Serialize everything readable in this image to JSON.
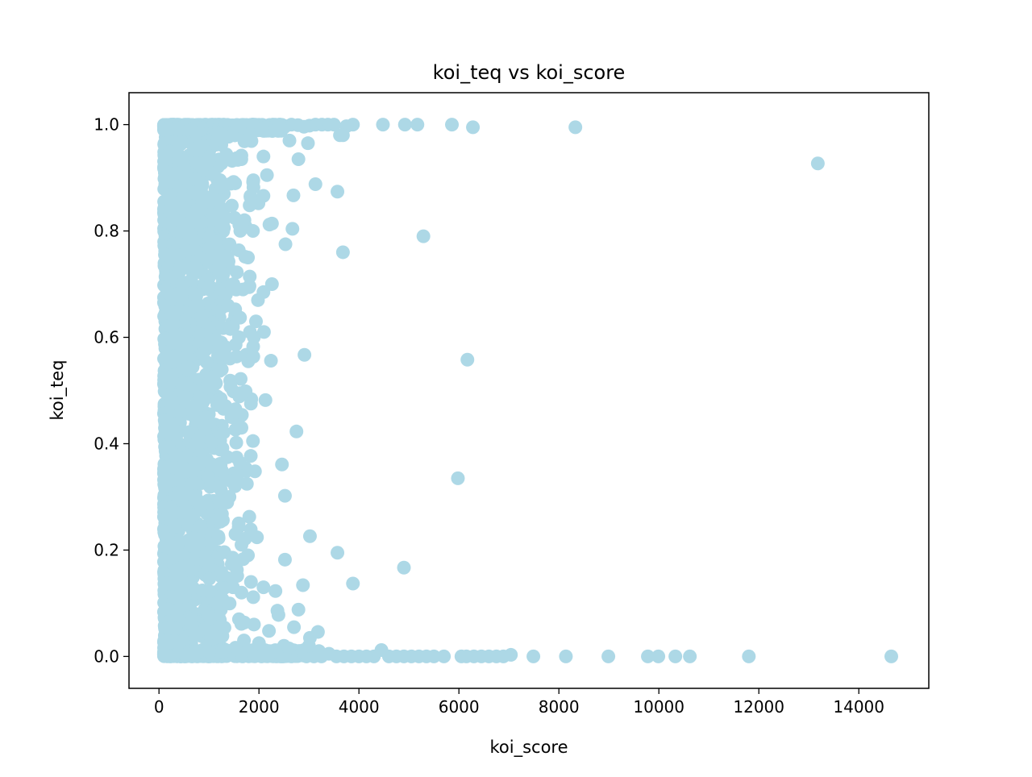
{
  "chart_data": {
    "type": "scatter",
    "title": "koi_teq vs koi_score",
    "xlabel": "koi_score",
    "ylabel": "koi_teq",
    "xlim": [
      -600,
      15400
    ],
    "ylim": [
      -0.06,
      1.06
    ],
    "xticks": [
      0,
      2000,
      4000,
      6000,
      8000,
      10000,
      12000,
      14000
    ],
    "yticks": [
      0.0,
      0.2,
      0.4,
      0.6,
      0.8,
      1.0
    ],
    "xtick_labels": [
      "0",
      "2000",
      "4000",
      "6000",
      "8000",
      "10000",
      "12000",
      "14000"
    ],
    "ytick_labels": [
      "0.0",
      "0.2",
      "0.4",
      "0.6",
      "0.8",
      "1.0"
    ],
    "grid": false,
    "marker_color": "#add8e6",
    "x": [
      14650,
      11800,
      10620,
      10330,
      9990,
      9780,
      8990,
      8140,
      7490,
      7040,
      6890,
      6750,
      6600,
      6450,
      6300,
      6150,
      6050,
      5700,
      5500,
      5350,
      5200,
      5050,
      4900,
      4750,
      4600,
      4450,
      4300,
      4150,
      4000,
      3850,
      3700,
      3550,
      3400,
      3250,
      3100,
      2950,
      2800,
      2650,
      2500,
      2350,
      2200,
      2050,
      1900,
      13180,
      8330,
      6280,
      5860,
      5170,
      4920,
      4480,
      3880,
      3750,
      3620,
      3500,
      3380,
      3260,
      3130,
      3010,
      2900,
      2780,
      2650,
      2530,
      2410,
      2290,
      2170,
      2050,
      3680,
      2980,
      2790,
      2610,
      2160,
      2090,
      3130,
      3570,
      2690,
      2210,
      2090,
      1990,
      1890,
      5290,
      3680,
      2670,
      2530,
      2260,
      1880,
      1780,
      2260,
      1980,
      2090,
      1680,
      1490,
      1380,
      6170,
      2910,
      2240,
      2100,
      1600,
      1480,
      1420,
      1940,
      1820,
      2130,
      1630,
      1530,
      1450,
      2750,
      1880,
      1650,
      1520,
      5980,
      2460,
      2520,
      1920,
      1620,
      1520,
      1410,
      3020,
      2520,
      3570,
      4900,
      1960,
      1780,
      1650,
      1530,
      3880,
      2880,
      2330,
      2090,
      1840,
      1650,
      1480,
      2370,
      2790,
      2390,
      3180,
      3020,
      2700,
      2200,
      1900,
      1600,
      3200,
      3000,
      2600,
      2300,
      2000,
      1700
    ],
    "y": [
      0.0,
      0.0,
      0.0,
      0.0,
      0.0,
      0.0,
      0.0,
      0.0,
      0.0,
      0.003,
      0.0,
      0.0,
      0.0,
      0.0,
      0.0,
      0.0,
      0.0,
      0.0,
      0.0,
      0.0,
      0.0,
      0.0,
      0.0,
      0.0,
      0.0,
      0.012,
      0.0,
      0.0,
      0.0,
      0.0,
      0.0,
      0.0,
      0.005,
      0.0,
      0.0,
      0.0,
      0.008,
      0.0,
      0.02,
      0.0,
      0.01,
      0.0,
      0.005,
      0.927,
      0.995,
      0.995,
      1.0,
      1.0,
      1.0,
      1.0,
      1.0,
      0.997,
      0.98,
      1.0,
      1.0,
      1.0,
      1.0,
      0.998,
      0.996,
      0.999,
      1.0,
      0.997,
      1.0,
      0.995,
      0.99,
      0.993,
      0.98,
      0.965,
      0.935,
      0.97,
      0.905,
      0.94,
      0.888,
      0.874,
      0.867,
      0.812,
      0.866,
      0.852,
      0.882,
      0.79,
      0.76,
      0.804,
      0.775,
      0.814,
      0.8,
      0.75,
      0.7,
      0.67,
      0.685,
      0.69,
      0.7,
      0.66,
      0.558,
      0.567,
      0.556,
      0.61,
      0.6,
      0.62,
      0.56,
      0.63,
      0.61,
      0.482,
      0.495,
      0.465,
      0.45,
      0.423,
      0.405,
      0.43,
      0.46,
      0.335,
      0.361,
      0.302,
      0.348,
      0.364,
      0.32,
      0.3,
      0.226,
      0.182,
      0.195,
      0.167,
      0.224,
      0.19,
      0.21,
      0.23,
      0.137,
      0.134,
      0.123,
      0.13,
      0.14,
      0.12,
      0.13,
      0.086,
      0.088,
      0.078,
      0.046,
      0.035,
      0.055,
      0.048,
      0.06,
      0.07,
      0.01,
      0.02,
      0.015,
      0.008,
      0.025,
      0.03
    ]
  }
}
